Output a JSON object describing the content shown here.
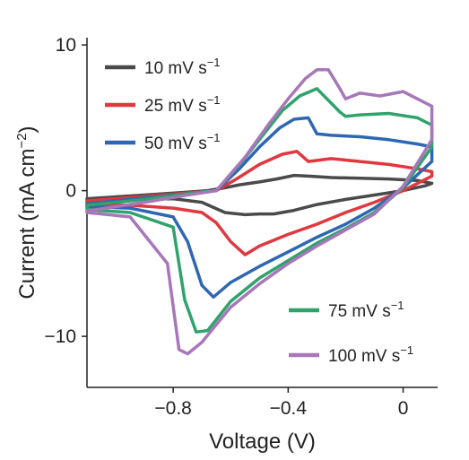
{
  "chart_data": {
    "type": "line",
    "xlabel": "Voltage (V)",
    "ylabel_main": "Current (mA cm",
    "ylabel_sup": "−2",
    "ylabel_close": ")",
    "xlim": [
      -1.1,
      0.12
    ],
    "ylim": [
      -13.5,
      10.5
    ],
    "xticks": [
      {
        "v": -0.8,
        "label": "−0.8"
      },
      {
        "v": -0.4,
        "label": "−0.4"
      },
      {
        "v": 0,
        "label": "0"
      }
    ],
    "yticks": [
      {
        "v": 10,
        "label": "10"
      },
      {
        "v": 0,
        "label": "0"
      },
      {
        "v": -10,
        "label": "−10"
      }
    ],
    "series": [
      {
        "name": "10 mV s",
        "sup": "−1",
        "color": "#4a4a4a",
        "legend_pos": "left",
        "x": [
          -1.1,
          -0.9,
          -0.75,
          -0.68,
          -0.62,
          -0.57,
          -0.5,
          -0.44,
          -0.38,
          -0.33,
          -0.25,
          -0.15,
          -0.05,
          0.05,
          0.1,
          0.08,
          0.0,
          -0.1,
          -0.2,
          -0.3,
          -0.38,
          -0.45,
          -0.5,
          -0.55,
          -0.62,
          -0.7,
          -0.8,
          -0.95,
          -1.1
        ],
        "y": [
          -0.55,
          -0.3,
          -0.1,
          0.0,
          0.2,
          0.4,
          0.6,
          0.8,
          1.05,
          1.0,
          0.9,
          0.85,
          0.8,
          0.7,
          0.5,
          0.35,
          0.0,
          -0.3,
          -0.6,
          -0.95,
          -1.35,
          -1.6,
          -1.6,
          -1.65,
          -1.5,
          -0.8,
          -0.55,
          -0.6,
          -0.65
        ]
      },
      {
        "name": "25 mV s",
        "sup": "−1",
        "color": "#e0383e",
        "legend_pos": "left",
        "x": [
          -1.1,
          -0.9,
          -0.75,
          -0.65,
          -0.58,
          -0.5,
          -0.42,
          -0.37,
          -0.33,
          -0.25,
          -0.15,
          -0.05,
          0.05,
          0.1,
          0.1,
          0.0,
          -0.1,
          -0.2,
          -0.3,
          -0.4,
          -0.5,
          -0.55,
          -0.6,
          -0.65,
          -0.7,
          -0.8,
          -0.95,
          -1.1
        ],
        "y": [
          -0.7,
          -0.4,
          -0.15,
          0.0,
          0.8,
          1.8,
          2.5,
          2.7,
          2.0,
          2.2,
          2.0,
          1.8,
          1.5,
          1.3,
          1.0,
          0.0,
          -0.8,
          -1.5,
          -2.3,
          -3.0,
          -3.8,
          -4.4,
          -3.5,
          -2.2,
          -1.5,
          -1.2,
          -1.0,
          -0.9
        ]
      },
      {
        "name": "50 mV s",
        "sup": "−1",
        "color": "#2e67b1",
        "legend_pos": "left",
        "x": [
          -1.1,
          -0.9,
          -0.75,
          -0.65,
          -0.57,
          -0.5,
          -0.43,
          -0.38,
          -0.33,
          -0.3,
          -0.25,
          -0.15,
          -0.05,
          0.05,
          0.1,
          0.1,
          0.0,
          -0.1,
          -0.2,
          -0.3,
          -0.4,
          -0.5,
          -0.6,
          -0.66,
          -0.7,
          -0.75,
          -0.8,
          -0.95,
          -1.1
        ],
        "y": [
          -0.9,
          -0.5,
          -0.2,
          0.0,
          1.5,
          3.0,
          4.3,
          4.9,
          5.0,
          3.9,
          3.8,
          3.7,
          3.5,
          3.2,
          3.0,
          2.0,
          0.2,
          -1.2,
          -2.3,
          -3.2,
          -4.2,
          -5.2,
          -6.3,
          -7.3,
          -6.5,
          -3.5,
          -1.8,
          -1.2,
          -1.1
        ]
      },
      {
        "name": "75 mV s",
        "sup": "−1",
        "color": "#2fa36b",
        "legend_pos": "right",
        "x": [
          -1.1,
          -0.9,
          -0.75,
          -0.65,
          -0.56,
          -0.48,
          -0.42,
          -0.36,
          -0.3,
          -0.26,
          -0.22,
          -0.2,
          -0.15,
          -0.05,
          0.05,
          0.1,
          0.1,
          0.0,
          -0.1,
          -0.2,
          -0.3,
          -0.4,
          -0.5,
          -0.6,
          -0.68,
          -0.72,
          -0.76,
          -0.8,
          -0.95,
          -1.1
        ],
        "y": [
          -1.0,
          -0.6,
          -0.2,
          0.0,
          2.0,
          4.0,
          5.5,
          6.5,
          7.0,
          6.2,
          5.4,
          5.1,
          5.2,
          5.3,
          5.0,
          4.5,
          3.0,
          0.2,
          -1.5,
          -2.6,
          -3.6,
          -4.8,
          -6.0,
          -7.6,
          -9.6,
          -9.7,
          -7.5,
          -2.5,
          -1.5,
          -1.3
        ]
      },
      {
        "name": "100 mV s",
        "sup": "−1",
        "color": "#a777b9",
        "legend_pos": "right",
        "x": [
          -1.1,
          -0.9,
          -0.75,
          -0.65,
          -0.55,
          -0.47,
          -0.4,
          -0.34,
          -0.3,
          -0.26,
          -0.22,
          -0.2,
          -0.15,
          -0.08,
          0.0,
          0.06,
          0.1,
          0.1,
          0.0,
          -0.1,
          -0.2,
          -0.3,
          -0.4,
          -0.5,
          -0.6,
          -0.7,
          -0.75,
          -0.78,
          -0.82,
          -0.95,
          -1.1
        ],
        "y": [
          -1.4,
          -0.8,
          -0.3,
          0.0,
          2.3,
          4.5,
          6.3,
          7.7,
          8.3,
          8.3,
          7.0,
          6.3,
          6.7,
          6.5,
          6.8,
          6.2,
          5.8,
          3.5,
          0.3,
          -1.6,
          -2.7,
          -3.8,
          -5.0,
          -6.4,
          -8.0,
          -10.4,
          -11.2,
          -10.9,
          -5.0,
          -1.8,
          -1.5
        ]
      }
    ],
    "legend": "split: top-left (10, 25, 50) and bottom-right (75, 100)",
    "grid": false
  }
}
